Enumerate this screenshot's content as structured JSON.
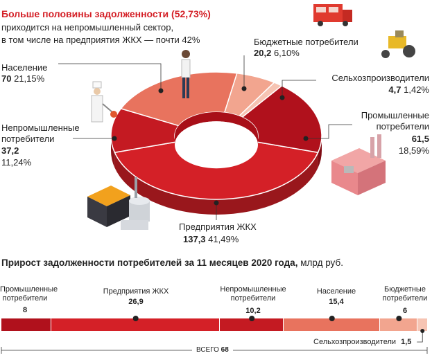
{
  "header": {
    "title_bold": "Больше половины задолженности (52,73%)",
    "subtitle_1": "приходится на непромышленный сектор,",
    "subtitle_2": "в том числе на предприятия ЖКХ — почти 42%"
  },
  "chart_data": [
    {
      "type": "pie",
      "style": "3d-donut",
      "slices": [
        {
          "label": "Предприятия ЖКХ",
          "value": 137.3,
          "percent": "41,49%",
          "color": "#d42027"
        },
        {
          "label": "Непромышленные потребители",
          "value": 37.2,
          "percent": "11,24%",
          "color": "#c41a22"
        },
        {
          "label": "Население",
          "value": 70,
          "percent": "21,15%",
          "color": "#e8735e"
        },
        {
          "label": "Бюджетные потребители",
          "value": 20.2,
          "percent": "6,10%",
          "color": "#f2a58f"
        },
        {
          "label": "Сельхозпроизводители",
          "value": 4.7,
          "percent": "1,42%",
          "color": "#f6c4b3"
        },
        {
          "label": "Промышленные потребители",
          "value": 61.5,
          "percent": "18,59%",
          "color": "#b0111c"
        }
      ]
    },
    {
      "type": "bar",
      "style": "stacked-horizontal",
      "title": "Прирост задолженности потребителей за 11 месяцев 2020 года,",
      "unit": "млрд руб.",
      "total_label": "ВСЕГО",
      "total_value": "68",
      "segments": [
        {
          "label": "Промышленные потребители",
          "value": 8,
          "value_text": "8",
          "color": "#b0111c"
        },
        {
          "label": "Предприятия ЖКХ",
          "value": 26.9,
          "value_text": "26,9",
          "color": "#d42027"
        },
        {
          "label": "Непромышленные потребители",
          "value": 10.2,
          "value_text": "10,2",
          "color": "#c41a22"
        },
        {
          "label": "Население",
          "value": 15.4,
          "value_text": "15,4",
          "color": "#e8735e"
        },
        {
          "label": "Бюджетные потребители",
          "value": 6,
          "value_text": "6",
          "color": "#f2a58f"
        },
        {
          "label": "Сельхозпроизводители",
          "value": 1.5,
          "value_text": "1,5",
          "color": "#f6c4b3"
        }
      ]
    }
  ],
  "donut_labels": {
    "zhkh": {
      "name": "Предприятия ЖКХ",
      "value": "137,3",
      "pct": "41,49%"
    },
    "nonind": {
      "name1": "Непромышленные",
      "name2": "потребители",
      "value": "37,2",
      "pct": "11,24%"
    },
    "pop": {
      "name": "Население",
      "value": "70",
      "pct": "21,15%"
    },
    "budget": {
      "name": "Бюджетные потребители",
      "value": "20,2",
      "pct": "6,10%"
    },
    "agri": {
      "name": "Сельхозпроизводители",
      "value": "4,7",
      "pct": "1,42%"
    },
    "ind": {
      "name1": "Промышленные",
      "name2": "потребители",
      "value": "61,5",
      "pct": "18,59%"
    }
  },
  "bar_labels": {
    "ind": {
      "l1": "Промышленные",
      "l2": "потребители",
      "v": "8"
    },
    "zhkh": {
      "l1": "Предприятия ЖКХ",
      "v": "26,9"
    },
    "nonind": {
      "l1": "Непромышленные",
      "l2": "потребители",
      "v": "10,2"
    },
    "pop": {
      "l1": "Население",
      "v": "15,4"
    },
    "budget": {
      "l1": "Бюджетные",
      "l2": "потребители",
      "v": "6"
    },
    "agri": {
      "l1": "Сельхозпроизводители",
      "v": "1,5"
    }
  },
  "icons": [
    "fire-truck-icon",
    "tractor-icon",
    "person-icon",
    "chef-icon",
    "factory-icon",
    "power-plant-icon"
  ]
}
